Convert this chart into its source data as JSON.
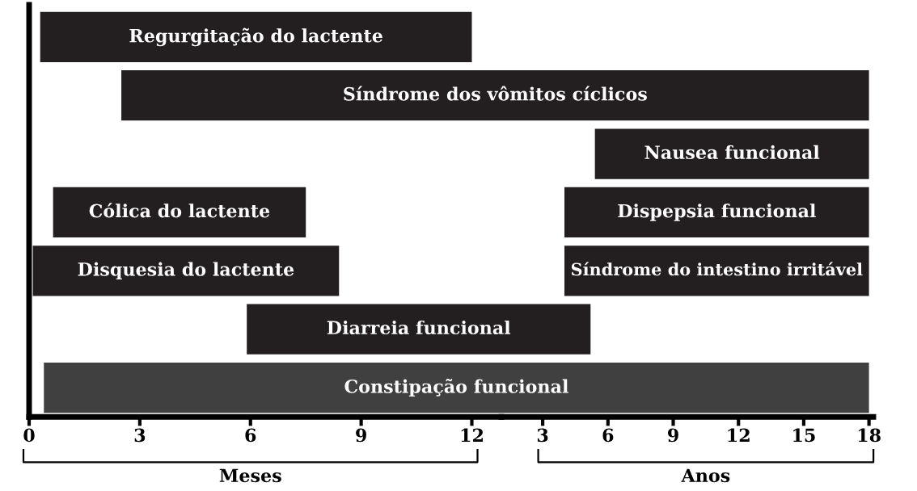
{
  "chart_data": [
    {
      "type": "bar",
      "orientation": "horizontal",
      "tick_labels": "x",
      "grid": false,
      "legend": false,
      "xlabel": "Meses",
      "categories": [
        null,
        null,
        null,
        null,
        null,
        null,
        null
      ],
      "series": [
        {
          "values": [
            11.7,
            10.3,
            null,
            6.85,
            8.3,
            6.9,
            12.4
          ],
          "base": [
            0.3,
            2.5,
            null,
            0.65,
            0.1,
            5.9,
            0.4
          ],
          "colors": [
            "#231f20",
            "#231f20",
            null,
            "#231f20",
            "#231f20",
            "#231f20",
            "#404040"
          ],
          "value_labels": [
            "Regurgitação do lactente",
            "Síndrome dos vômitos cíclicos",
            null,
            "Cólica do lactente",
            "Disquesia do lactente",
            "Diarreia funcional",
            "Constipação funcional"
          ]
        }
      ],
      "xlim": [
        0,
        12.8
      ],
      "xticks": [
        0,
        3,
        6,
        9,
        12
      ]
    },
    {
      "type": "bar",
      "orientation": "horizontal",
      "tick_labels": "x",
      "grid": false,
      "legend": false,
      "xlabel": "Anos",
      "categories": [
        null,
        null,
        null,
        null,
        null,
        null,
        null
      ],
      "series": [
        {
          "values": [
            null,
            16.9,
            12.6,
            14,
            14,
            4.1,
            16.9
          ],
          "base": [
            null,
            1.1,
            5.4,
            4,
            4,
            1.1,
            1.1
          ],
          "colors": [
            null,
            "#231f20",
            "#231f20",
            "#231f20",
            "#231f20",
            "#231f20",
            "#404040"
          ],
          "value_labels": [
            null,
            null,
            "Nausea funcional",
            "Dispepsia funcional",
            "Síndrome do intestino irritável",
            null,
            null
          ]
        }
      ],
      "xlim": [
        1.1,
        18.2
      ],
      "xticks": [
        3,
        6,
        9,
        12,
        15,
        18
      ]
    }
  ]
}
